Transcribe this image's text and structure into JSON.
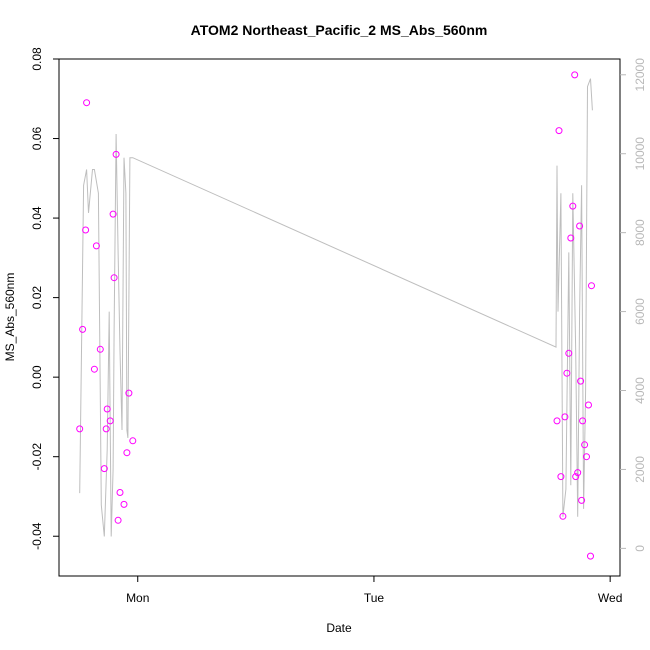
{
  "chart_data": {
    "type": "scatter",
    "title": "ATOM2 Northeast_Pacific_2 MS_Abs_560nm",
    "xlabel": "Date",
    "ylabel": "MS_Abs_560nm",
    "x_ticks": [
      {
        "label": "Mon",
        "value": 24
      },
      {
        "label": "Tue",
        "value": 48
      },
      {
        "label": "Wed",
        "value": 72
      }
    ],
    "xlim": [
      16,
      73
    ],
    "ylim": [
      -0.05,
      0.08
    ],
    "y_ticks": [
      -0.04,
      -0.02,
      0.0,
      0.02,
      0.04,
      0.06,
      0.08
    ],
    "y_tick_labels": [
      "-0.04",
      "-0.02",
      "0.00",
      "0.02",
      "0.04",
      "0.06",
      "0.08"
    ],
    "y2lim": [
      -700,
      12400
    ],
    "y2_ticks": [
      0,
      2000,
      4000,
      6000,
      8000,
      10000,
      12000
    ],
    "y2_tick_labels": [
      "0",
      "2000",
      "4000",
      "6000",
      "8000",
      "10000",
      "12000"
    ],
    "grid": false,
    "colors": {
      "points": "#ff00ff",
      "line": "#bebebe",
      "axis": "#000000",
      "axis2": "#b8b8b8"
    },
    "series": [
      {
        "type": "scatter",
        "axis": "left",
        "x": [
          18.1,
          18.4,
          18.7,
          18.8,
          19.6,
          19.8,
          20.2,
          20.6,
          20.8,
          20.9,
          21.2,
          21.5,
          21.6,
          21.8,
          22.0,
          22.2,
          22.6,
          22.9,
          23.1,
          23.5
        ],
        "y": [
          -0.013,
          0.012,
          0.037,
          0.069,
          0.002,
          0.033,
          0.007,
          -0.023,
          -0.013,
          -0.008,
          -0.011,
          0.041,
          0.025,
          0.056,
          -0.036,
          -0.029,
          -0.032,
          -0.019,
          -0.004,
          -0.016
        ]
      },
      {
        "type": "scatter",
        "axis": "left",
        "x": [
          66.6,
          66.8,
          67.0,
          67.2,
          67.4,
          67.6,
          67.8,
          68.0,
          68.2,
          68.4,
          68.5,
          68.7,
          68.9,
          69.0,
          69.1,
          69.2,
          69.4,
          69.6,
          69.8,
          70.0
        ],
        "y": [
          -0.011,
          0.062,
          -0.025,
          -0.035,
          -0.01,
          0.001,
          0.006,
          0.035,
          0.043,
          0.076,
          -0.025,
          -0.024,
          0.038,
          -0.001,
          -0.031,
          -0.011,
          -0.017,
          -0.02,
          -0.007,
          -0.045
        ]
      },
      {
        "type": "scatter",
        "axis": "left",
        "x": [
          70.1
        ],
        "y": [
          0.023
        ]
      },
      {
        "type": "line",
        "axis": "right",
        "x": [
          18.1,
          18.5,
          18.8,
          19.0,
          19.4,
          19.6,
          20.0,
          20.3,
          20.6,
          20.9,
          21.1,
          21.3,
          21.5,
          21.6,
          21.8,
          22.0,
          22.2,
          22.4,
          22.6,
          22.8,
          22.9,
          23.0,
          23.2,
          23.5,
          66.5,
          66.6,
          66.7,
          67.0,
          67.2,
          67.5,
          67.8,
          68.0,
          68.2,
          68.5,
          68.7,
          68.9,
          69.1,
          69.3,
          69.5,
          69.7,
          70.0,
          70.2
        ],
        "y": [
          1400,
          9200,
          9600,
          8500,
          9600,
          9600,
          9000,
          1100,
          300,
          2500,
          6000,
          300,
          2000,
          5500,
          10500,
          7500,
          5000,
          3000,
          9900,
          9000,
          3000,
          2800,
          9900,
          9900,
          5100,
          9700,
          6000,
          9000,
          800,
          1500,
          7500,
          1600,
          9000,
          5000,
          800,
          6000,
          9200,
          1000,
          4000,
          11700,
          11900,
          11100
        ]
      }
    ]
  }
}
